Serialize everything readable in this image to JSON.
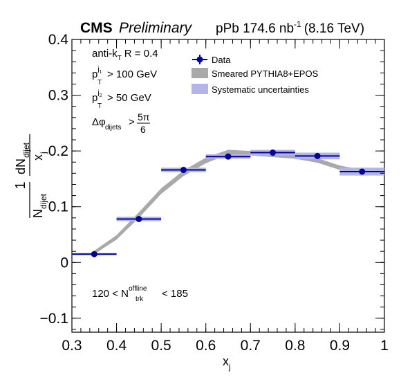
{
  "header": {
    "experiment": "CMS",
    "status": "Preliminary",
    "lumi_prefix": "pPb 174.6 nb",
    "lumi_exp": "-1",
    "energy": "(8.16 TeV)"
  },
  "annotations": {
    "algo": "anti-k",
    "algo_sub": "T",
    "algo_rest": "R = 0.4",
    "pt1_main": "p",
    "pt1_sub": "T",
    "pt1_sup_main": "j",
    "pt1_sup_sub": "1",
    "pt1_rest": "> 100 GeV",
    "pt2_main": "p",
    "pt2_sub": "T",
    "pt2_sup_main": "j",
    "pt2_sup_sub": "2",
    "pt2_rest": "> 50 GeV",
    "dphi_main": "Δφ",
    "dphi_sub": "dijets",
    "dphi_gt": ">",
    "dphi_num": "5π",
    "dphi_den": "6",
    "mult_left": "120 < N",
    "mult_sup": "offline",
    "mult_sub": "trk",
    "mult_right": "< 185"
  },
  "ylabel": {
    "frac_num": "1",
    "frac_den_main": "N",
    "frac_den_sub": "dijet",
    "dN_main": "dN",
    "dN_sub": "dijet",
    "dx_main": "x",
    "dx_sub": "j"
  },
  "xlabel": {
    "main": "x",
    "sub": "j"
  },
  "colors": {
    "data": "#000099",
    "syst": "#b4b4e6",
    "mc": "#a9a9a9"
  },
  "chart_data": {
    "type": "scatter",
    "xlim": [
      0.3,
      1.0
    ],
    "ylim": [
      -0.125,
      0.4
    ],
    "xticks": [
      "0.3",
      "0.4",
      "0.5",
      "0.6",
      "0.7",
      "0.8",
      "0.9",
      "1"
    ],
    "xtick_values": [
      0.3,
      0.4,
      0.5,
      0.6,
      0.7,
      0.8,
      0.9,
      1.0
    ],
    "yticks": [
      "−0.1",
      "0",
      "0.1",
      "0.2",
      "0.3",
      "0.4"
    ],
    "ytick_values": [
      -0.1,
      0.0,
      0.1,
      0.2,
      0.3,
      0.4
    ],
    "legend": {
      "placement": "top-right",
      "entries": [
        "Data",
        "Smeared PYTHIA8+EPOS",
        "Systematic uncertainties"
      ]
    },
    "series": [
      {
        "name": "Data",
        "x": [
          0.35,
          0.45,
          0.55,
          0.65,
          0.75,
          0.85,
          0.95
        ],
        "xerr": [
          0.05,
          0.05,
          0.05,
          0.05,
          0.05,
          0.05,
          0.05
        ],
        "y": [
          0.015,
          0.078,
          0.166,
          0.19,
          0.197,
          0.191,
          0.163
        ],
        "syst": [
          0.002,
          0.004,
          0.004,
          0.004,
          0.005,
          0.006,
          0.007
        ]
      },
      {
        "name": "Smeared PYTHIA8+EPOS",
        "x": [
          0.35,
          0.4,
          0.45,
          0.5,
          0.55,
          0.6,
          0.65,
          0.7,
          0.75,
          0.8,
          0.85,
          0.9,
          0.95
        ],
        "y": [
          0.018,
          0.045,
          0.085,
          0.128,
          0.16,
          0.183,
          0.198,
          0.196,
          0.193,
          0.19,
          0.183,
          0.17,
          0.162
        ],
        "band": [
          0.003,
          0.004,
          0.005,
          0.005,
          0.005,
          0.005,
          0.004,
          0.004,
          0.004,
          0.004,
          0.004,
          0.004,
          0.004
        ]
      }
    ]
  }
}
